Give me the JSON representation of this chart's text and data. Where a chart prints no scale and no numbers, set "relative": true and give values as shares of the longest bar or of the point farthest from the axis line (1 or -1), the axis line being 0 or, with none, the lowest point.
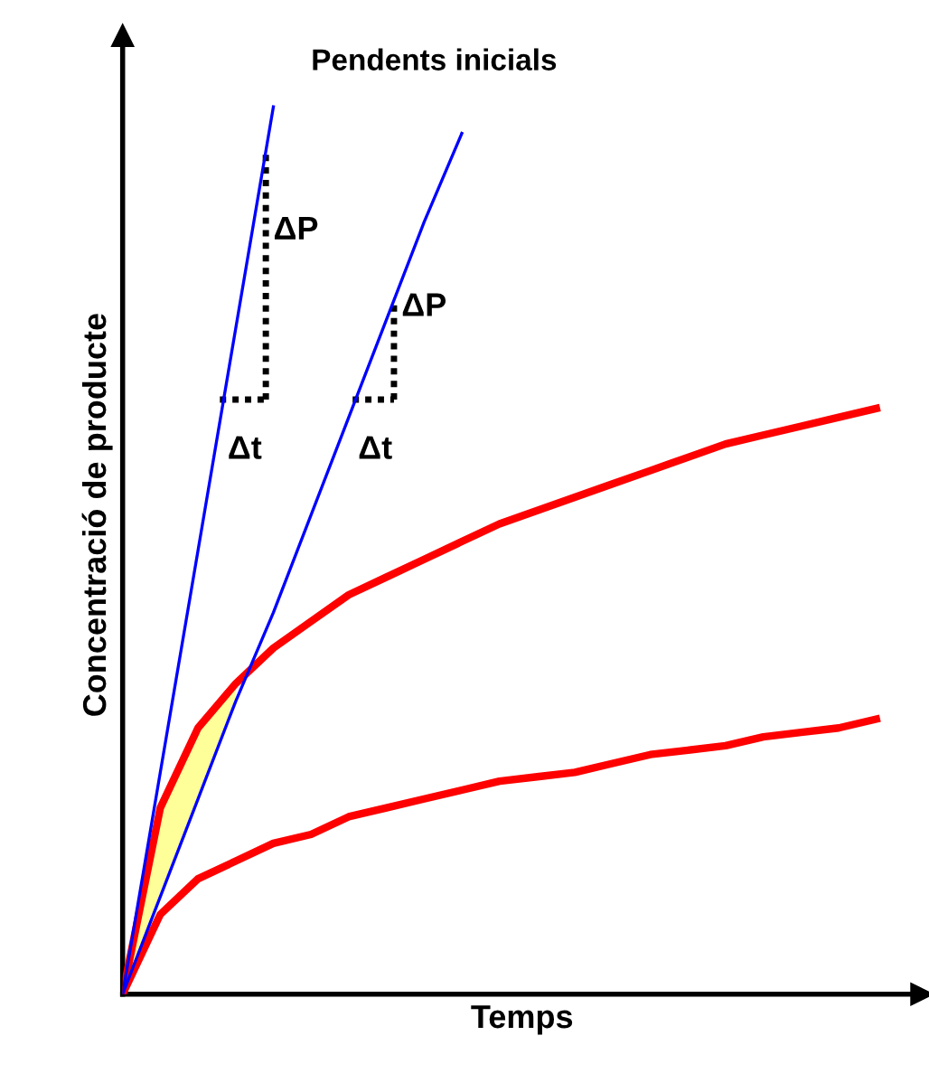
{
  "chart_data": {
    "type": "line",
    "relative": true,
    "xlabel": "Temps",
    "ylabel": "Concentració de producte",
    "annotations": [
      "Pendents inicials",
      "ΔP",
      "Δt",
      "ΔP",
      "Δt"
    ],
    "categories": [
      null,
      null,
      null,
      null,
      null,
      null,
      null,
      null,
      null,
      null,
      null,
      null,
      null,
      null,
      null,
      null,
      null,
      null,
      null,
      null,
      null
    ],
    "series": [
      {
        "color": "#ff0000",
        "values": [
          0,
          0.21,
          0.3,
          0.35,
          0.39,
          0.42,
          0.45,
          0.47,
          0.49,
          0.51,
          0.53,
          0.545,
          0.56,
          0.575,
          0.59,
          0.605,
          0.62,
          0.63,
          0.64,
          0.65,
          0.66
        ],
        "lower": [
          0,
          0.11,
          0.22,
          0.33,
          null,
          null,
          null,
          null,
          null,
          null,
          null,
          null,
          null,
          null,
          null,
          null,
          null,
          null,
          null,
          null,
          null
        ],
        "upper": [
          0,
          0.21,
          0.3,
          0.35,
          null,
          null,
          null,
          null,
          null,
          null,
          null,
          null,
          null,
          null,
          null,
          null,
          null,
          null,
          null,
          null,
          null
        ]
      },
      {
        "color": "#ff0000",
        "values": [
          0,
          0.09,
          0.13,
          0.15,
          0.17,
          0.18,
          0.2,
          0.21,
          0.22,
          0.23,
          0.24,
          0.245,
          0.25,
          0.26,
          0.27,
          0.275,
          0.28,
          0.29,
          0.295,
          0.3,
          0.31
        ]
      },
      {
        "color": "#0000ff",
        "values": [
          0,
          0.25,
          0.5,
          0.75,
          1.0,
          null,
          null,
          null,
          null,
          null,
          null,
          null,
          null,
          null,
          null,
          null,
          null,
          null,
          null,
          null,
          null
        ]
      },
      {
        "color": "#0000ff",
        "values": [
          0,
          0.11,
          0.22,
          0.33,
          0.43,
          0.54,
          0.65,
          0.76,
          0.87,
          0.97,
          null,
          null,
          null,
          null,
          null,
          null,
          null,
          null,
          null,
          null,
          null
        ]
      }
    ]
  }
}
